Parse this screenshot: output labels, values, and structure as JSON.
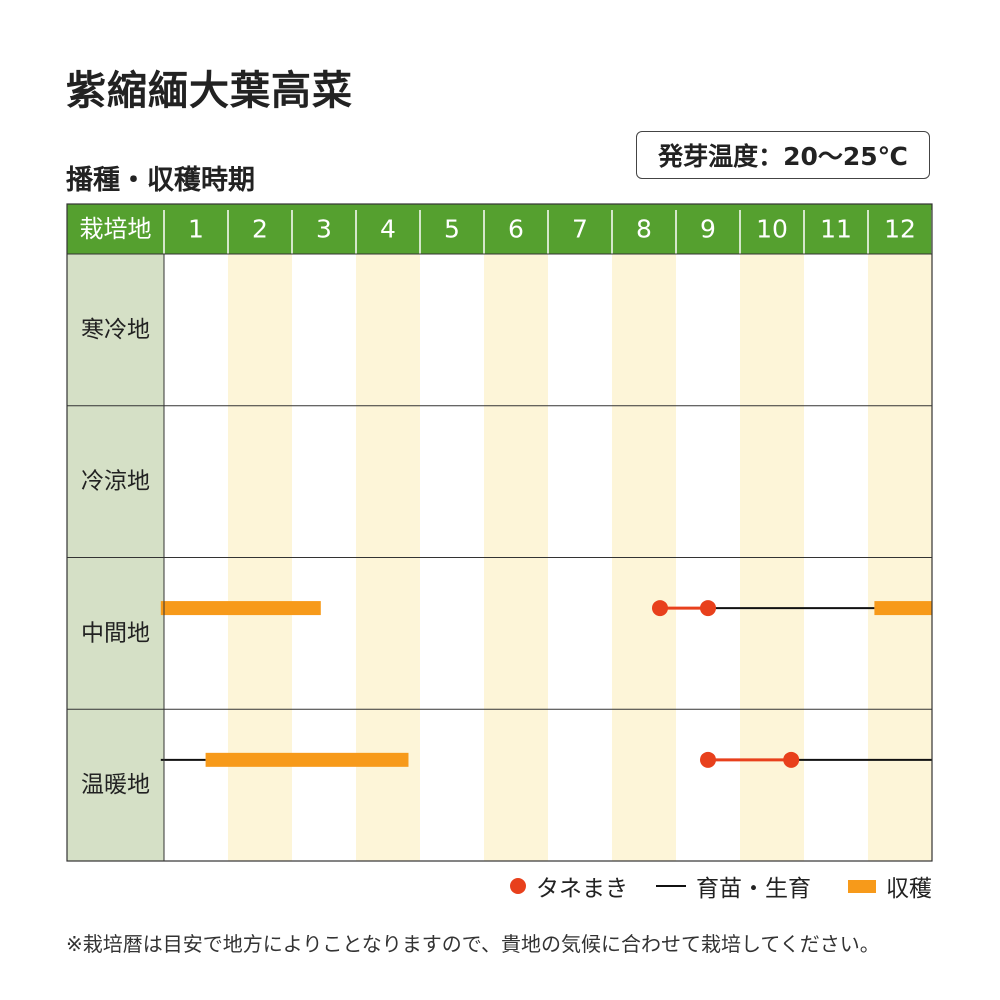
{
  "title": "紫縮緬大葉高菜",
  "subtitle": "播種・収穫時期",
  "temperature": "発芽温度：20〜25℃",
  "chart_data": {
    "type": "table",
    "header_label": "栽培地",
    "months": [
      "1",
      "2",
      "3",
      "4",
      "5",
      "6",
      "7",
      "8",
      "9",
      "10",
      "11",
      "12"
    ],
    "regions": [
      {
        "name": "寒冷地",
        "sowing": [],
        "growing": [],
        "harvest": []
      },
      {
        "name": "冷涼地",
        "sowing": [],
        "growing": [],
        "harvest": []
      },
      {
        "name": "中間地",
        "sowing": [
          [
            8.75,
            9.5
          ]
        ],
        "growing": [
          [
            9.5,
            12.1
          ]
        ],
        "harvest": [
          [
            0.95,
            3.45
          ],
          [
            12.1,
            13.0
          ]
        ]
      },
      {
        "name": "温暖地",
        "sowing": [
          [
            9.5,
            10.8
          ]
        ],
        "growing": [
          [
            0.95,
            1.65
          ],
          [
            10.8,
            13.0
          ]
        ],
        "harvest": [
          [
            1.65,
            4.82
          ]
        ]
      }
    ],
    "colors": {
      "sowing": "#e8401c",
      "growing": "#111111",
      "harvest": "#f79a1a",
      "header": "#55a02f",
      "label_col": "#d5e0c6",
      "stripe": "#fdf5d8"
    }
  },
  "legend": {
    "sowing": "タネまき",
    "growing": "育苗・生育",
    "harvest": "収穫"
  },
  "note": "※栽培暦は目安で地方によりことなりますので、貴地の気候に合わせて栽培してください。"
}
